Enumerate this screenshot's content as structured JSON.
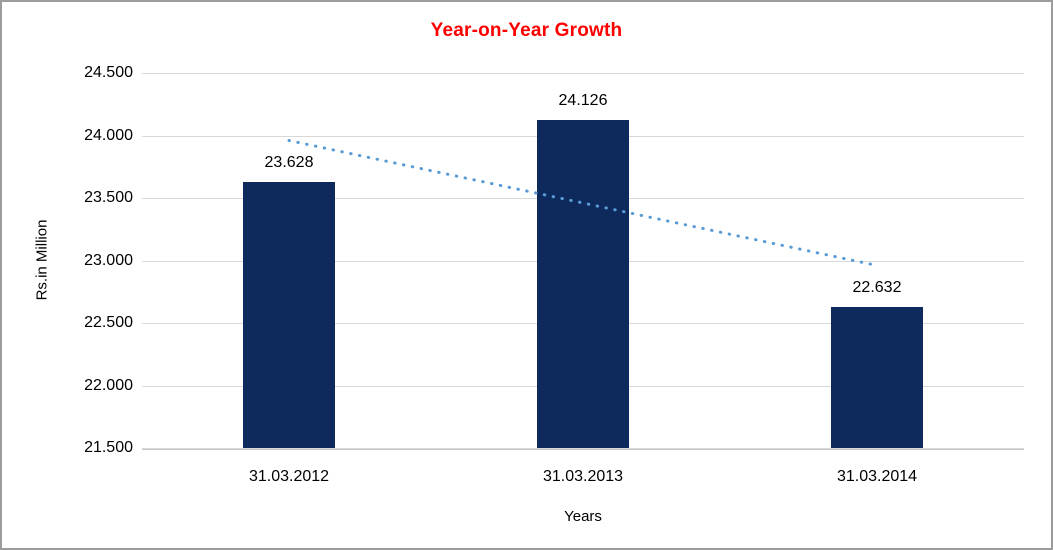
{
  "chart_data": {
    "type": "bar",
    "title": "Year-on-Year Growth",
    "title_color": "#ff0000",
    "xlabel": "Years",
    "ylabel": "Rs.in Million",
    "categories": [
      "31.03.2012",
      "31.03.2013",
      "31.03.2014"
    ],
    "values": [
      23.628,
      24.126,
      22.632
    ],
    "data_labels": [
      "23.628",
      "24.126",
      "22.632"
    ],
    "bar_color": "#0e2a5c",
    "ylim": [
      21.5,
      24.5
    ],
    "yticks": [
      {
        "label": "24.500",
        "value": 24.5
      },
      {
        "label": "24.000",
        "value": 24.0
      },
      {
        "label": "23.500",
        "value": 23.5
      },
      {
        "label": "23.000",
        "value": 23.0
      },
      {
        "label": "22.500",
        "value": 22.5
      },
      {
        "label": "22.000",
        "value": 22.0
      },
      {
        "label": "21.500",
        "value": 21.5
      }
    ],
    "grid": true,
    "gridline_color": "#d9d9d9",
    "legend": "none",
    "trendline": {
      "type": "linear",
      "style": "dotted",
      "color": "#5b9bd5",
      "start_value": 23.96,
      "end_value": 22.96
    }
  }
}
